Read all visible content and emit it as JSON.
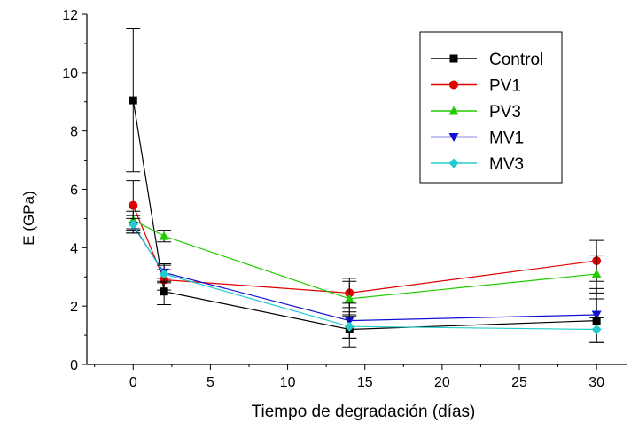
{
  "chart_data": {
    "type": "line",
    "title": "",
    "xlabel": "Tiempo de degradación (días)",
    "ylabel": "E (GPa)",
    "xlim": [
      -3,
      32
    ],
    "ylim": [
      0,
      12
    ],
    "x_ticks": [
      0,
      5,
      10,
      15,
      20,
      25,
      30
    ],
    "y_ticks": [
      0,
      2,
      4,
      6,
      8,
      10,
      12
    ],
    "grid": false,
    "legend_position": "top-right",
    "x": [
      0,
      2,
      14,
      30
    ],
    "series": [
      {
        "name": "Control",
        "color": "#000000",
        "marker": "square",
        "values": [
          9.05,
          2.5,
          1.2,
          1.5
        ],
        "errors": [
          2.45,
          0.45,
          0.6,
          0.75
        ]
      },
      {
        "name": "PV1",
        "color": "#e00000",
        "marker": "circle",
        "values": [
          5.45,
          2.9,
          2.45,
          3.55
        ],
        "errors": [
          0.85,
          0.35,
          0.5,
          0.7
        ]
      },
      {
        "name": "PV3",
        "color": "#22cc00",
        "marker": "triangle-up",
        "values": [
          4.95,
          4.4,
          2.25,
          3.1
        ],
        "errors": [
          0.3,
          0.2,
          0.6,
          0.65
        ]
      },
      {
        "name": "MV1",
        "color": "#1010d0",
        "marker": "triangle-down",
        "values": [
          4.75,
          3.15,
          1.5,
          1.7
        ],
        "errors": [
          0.25,
          0.3,
          0.6,
          0.9
        ]
      },
      {
        "name": "MV3",
        "color": "#22cccc",
        "marker": "diamond",
        "values": [
          4.8,
          3.1,
          1.3,
          1.2
        ],
        "errors": [
          0.3,
          0.3,
          0.4,
          0.4
        ]
      }
    ]
  }
}
